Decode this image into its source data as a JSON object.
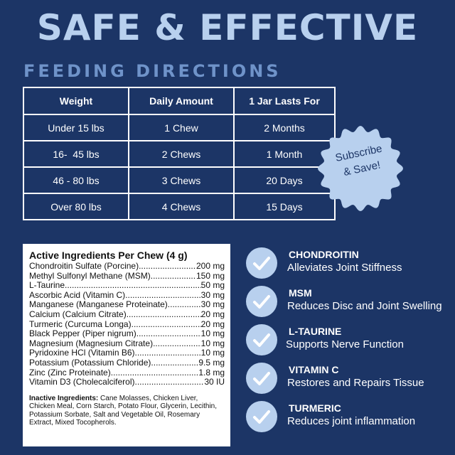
{
  "header": {
    "title": "SAFE & EFFECTIVE",
    "subtitle": "FEEDING DIRECTIONS"
  },
  "feeding_table": {
    "headers": [
      "Weight",
      "Daily Amount",
      "1 Jar Lasts For"
    ],
    "rows": [
      [
        "Under 15 lbs",
        "1 Chew",
        "2 Months"
      ],
      [
        "16-  45 lbs",
        "2 Chews",
        "1 Month"
      ],
      [
        "46 - 80 lbs",
        "3 Chews",
        "20 Days"
      ],
      [
        "Over 80 lbs",
        "4 Chews",
        "15 Days"
      ]
    ]
  },
  "badge": {
    "line1": "Subscribe",
    "line2": "& Save!"
  },
  "ingredients": {
    "heading": "Active Ingredients Per Chew (4 g)",
    "items": [
      {
        "name": "Chondroitin Sulfate (Porcine)",
        "amount": "200 mg"
      },
      {
        "name": "Methyl Sulfonyl Methane (MSM)",
        "amount": "150 mg"
      },
      {
        "name": "L-Taurine",
        "amount": "50 mg"
      },
      {
        "name": "Ascorbic Acid (Vitamin C)",
        "amount": "30 mg"
      },
      {
        "name": "Manganese (Manganese Proteinate)",
        "amount": "30 mg"
      },
      {
        "name": "Calcium (Calcium Citrate)",
        "amount": "20 mg"
      },
      {
        "name": "Turmeric (Curcuma Longa)",
        "amount": "20 mg"
      },
      {
        "name": "Black Pepper (Piper nigrum)",
        "amount": "10 mg"
      },
      {
        "name": "Magnesium (Magnesium Citrate)",
        "amount": "10 mg"
      },
      {
        "name": "Pyridoxine HCl (Vitamin B6)",
        "amount": "10 mg"
      },
      {
        "name": "Potassium (Potassium Chloride)",
        "amount": "9.5 mg"
      },
      {
        "name": "Zinc (Zinc Proteinate)",
        "amount": "1.8 mg"
      },
      {
        "name": "Vitamin D3 (Cholecalciferol)",
        "amount": "30 IU"
      }
    ],
    "inactive_label": "Inactive Ingredients:",
    "inactive_text": "Cane Molasses, Chicken Liver, Chicken Meal, Corn Starch, Potato Flour, Glycerin, Lecithin, Potassium Sorbate, Salt and Vegetable Oil, Rosemary Extract, Mixed Tocopherols."
  },
  "benefits": [
    {
      "title": "CHONDROITIN",
      "desc": "Alleviates Joint Stiffness",
      "icon": "checkmark-icon"
    },
    {
      "title": "MSM",
      "desc": "Reduces Disc and Joint Swelling",
      "icon": "checkmark-icon"
    },
    {
      "title": "L-TAURINE",
      "desc": "Supports Nerve Function",
      "icon": "checkmark-icon"
    },
    {
      "title": "VITAMIN C",
      "desc": "Restores and Repairs Tissue",
      "icon": "checkmark-icon"
    },
    {
      "title": "TURMERIC",
      "desc": "Reduces joint inflammation",
      "icon": "checkmark-icon"
    }
  ],
  "colors": {
    "background": "#1c3566",
    "title": "#b8d0ee",
    "subtitle": "#6f93c9",
    "accent_light": "#b8d0ee",
    "panel": "#ffffff"
  }
}
